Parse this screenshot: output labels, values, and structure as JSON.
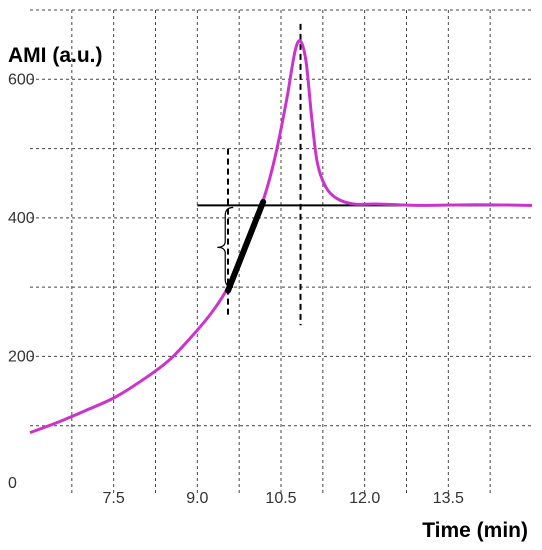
{
  "chart_data": {
    "type": "line",
    "title": "",
    "xlabel": "Time (min)",
    "ylabel": "AMI (a.u.)",
    "xlim": [
      6.0,
      15.0
    ],
    "ylim": [
      0,
      700
    ],
    "x_ticks": [
      7.5,
      9.0,
      10.5,
      12.0,
      13.5
    ],
    "x_tick_labels": [
      "7.5",
      "9.0",
      "10.5",
      "12.0",
      "13.5"
    ],
    "y_ticks": [
      0,
      200,
      400,
      600
    ],
    "y_tick_labels": [
      "0",
      "200",
      "400",
      "600"
    ],
    "grid": true,
    "legend": "none",
    "series": [
      {
        "color": "#cc33cc",
        "x": [
          6.0,
          6.5,
          7.0,
          7.5,
          8.0,
          8.5,
          9.0,
          9.3,
          9.55,
          9.8,
          10.0,
          10.2,
          10.4,
          10.6,
          10.75,
          10.85,
          10.95,
          11.05,
          11.15,
          11.3,
          11.5,
          11.8,
          12.2,
          13.0,
          14.0,
          15.0
        ],
        "y": [
          90,
          105,
          122,
          140,
          165,
          195,
          238,
          268,
          300,
          345,
          390,
          430,
          490,
          570,
          640,
          655,
          625,
          545,
          480,
          445,
          428,
          420,
          420,
          418,
          419,
          418
        ]
      }
    ],
    "annotations": {
      "baseline_level": 418,
      "tangent_line": {
        "x": [
          9.55,
          10.18
        ],
        "y": [
          295,
          423
        ],
        "color": "#000000"
      },
      "vertical_markers": [
        {
          "x": 9.55,
          "y_range": [
            255,
            500
          ]
        },
        {
          "x": 10.85,
          "y_range": [
            245,
            680
          ]
        }
      ],
      "brace": {
        "x": 9.5,
        "y_range": [
          300,
          415
        ]
      }
    }
  }
}
